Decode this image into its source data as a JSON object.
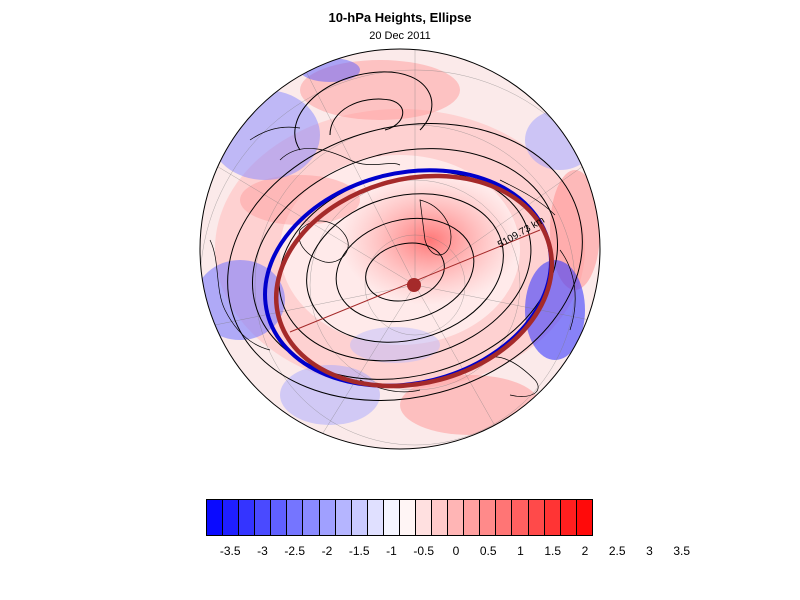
{
  "title": "10-hPa Heights, Ellipse",
  "subtitle": "20 Dec 2011",
  "map": {
    "projection": "north-polar-stereographic",
    "ellipse_label": "5109.73 km",
    "ellipse_colors": {
      "fitted": "#a52a2a",
      "outer": "#0000cc"
    },
    "center_marker_color": "#a52a2a"
  },
  "colorbar": {
    "colors": [
      "#0a0aff",
      "#1f1fff",
      "#3434ff",
      "#4a4aff",
      "#6060ff",
      "#7575ff",
      "#8a8aff",
      "#a0a0ff",
      "#b5b5ff",
      "#cacaff",
      "#e0e0ff",
      "#f5f5ff",
      "#fff5f5",
      "#ffe0e0",
      "#ffcaca",
      "#ffb5b5",
      "#ffa0a0",
      "#ff8a8a",
      "#ff7575",
      "#ff6060",
      "#ff4a4a",
      "#ff3434",
      "#ff1f1f",
      "#ff0a0a"
    ],
    "labels": [
      "-3.5",
      "-3",
      "-2.5",
      "-2",
      "-1.5",
      "-1",
      "-0.5",
      "0",
      "0.5",
      "1",
      "1.5",
      "2",
      "2.5",
      "3",
      "3.5"
    ]
  }
}
